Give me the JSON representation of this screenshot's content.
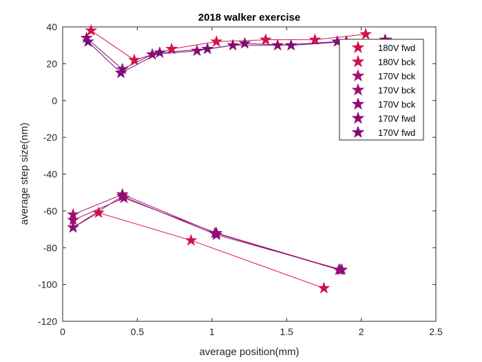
{
  "chart_data": {
    "type": "line",
    "title": "2018 walker exercise",
    "xlabel": "average position(mm)",
    "ylabel": "average step size(nm)",
    "xlim": [
      0,
      2.5
    ],
    "ylim": [
      -120,
      40
    ],
    "xticks": [
      "0",
      "0.5",
      "1",
      "1.5",
      "2",
      "2.5"
    ],
    "yticks": [
      "-120",
      "-100",
      "-80",
      "-60",
      "-40",
      "-20",
      "0",
      "20",
      "40"
    ],
    "grid": false,
    "legend_position": "top-right",
    "marker": "star",
    "series": [
      {
        "name": "180V fwd",
        "color": "#d4124a",
        "x": [
          0.19,
          0.48,
          0.73,
          1.03,
          1.36,
          1.69,
          2.03
        ],
        "y": [
          38,
          22,
          28,
          32,
          33,
          33,
          36
        ]
      },
      {
        "name": "180V bck",
        "color": "#d4124a",
        "x": [
          0.07,
          0.24,
          0.86,
          1.75
        ],
        "y": [
          -69,
          -61,
          -76,
          -102
        ]
      },
      {
        "name": "170V bck",
        "color": "#a3136d",
        "x": [
          0.07,
          0.4,
          1.02,
          1.85
        ],
        "y": [
          -62,
          -51,
          -72,
          -92
        ]
      },
      {
        "name": "170V bck",
        "color": "#9b1075",
        "x": [
          0.07,
          0.41,
          1.03,
          1.86
        ],
        "y": [
          -65,
          -53,
          -72,
          -92
        ]
      },
      {
        "name": "170V bck",
        "color": "#8c0d7a",
        "x": [
          0.07,
          0.4,
          1.03,
          1.87
        ],
        "y": [
          -69,
          -52,
          -73,
          -92
        ]
      },
      {
        "name": "170V fwd",
        "color": "#8a0d73",
        "x": [
          0.16,
          0.4,
          0.6,
          0.9,
          1.14,
          1.44,
          1.84,
          2.16
        ],
        "y": [
          34,
          17,
          25,
          27,
          30,
          30,
          32,
          33
        ]
      },
      {
        "name": "170V fwd",
        "color": "#7a0d78",
        "x": [
          0.17,
          0.39,
          0.65,
          0.97,
          1.22,
          1.53,
          1.9,
          2.2
        ],
        "y": [
          32,
          15,
          26,
          28,
          31,
          30,
          32,
          31
        ]
      }
    ]
  }
}
